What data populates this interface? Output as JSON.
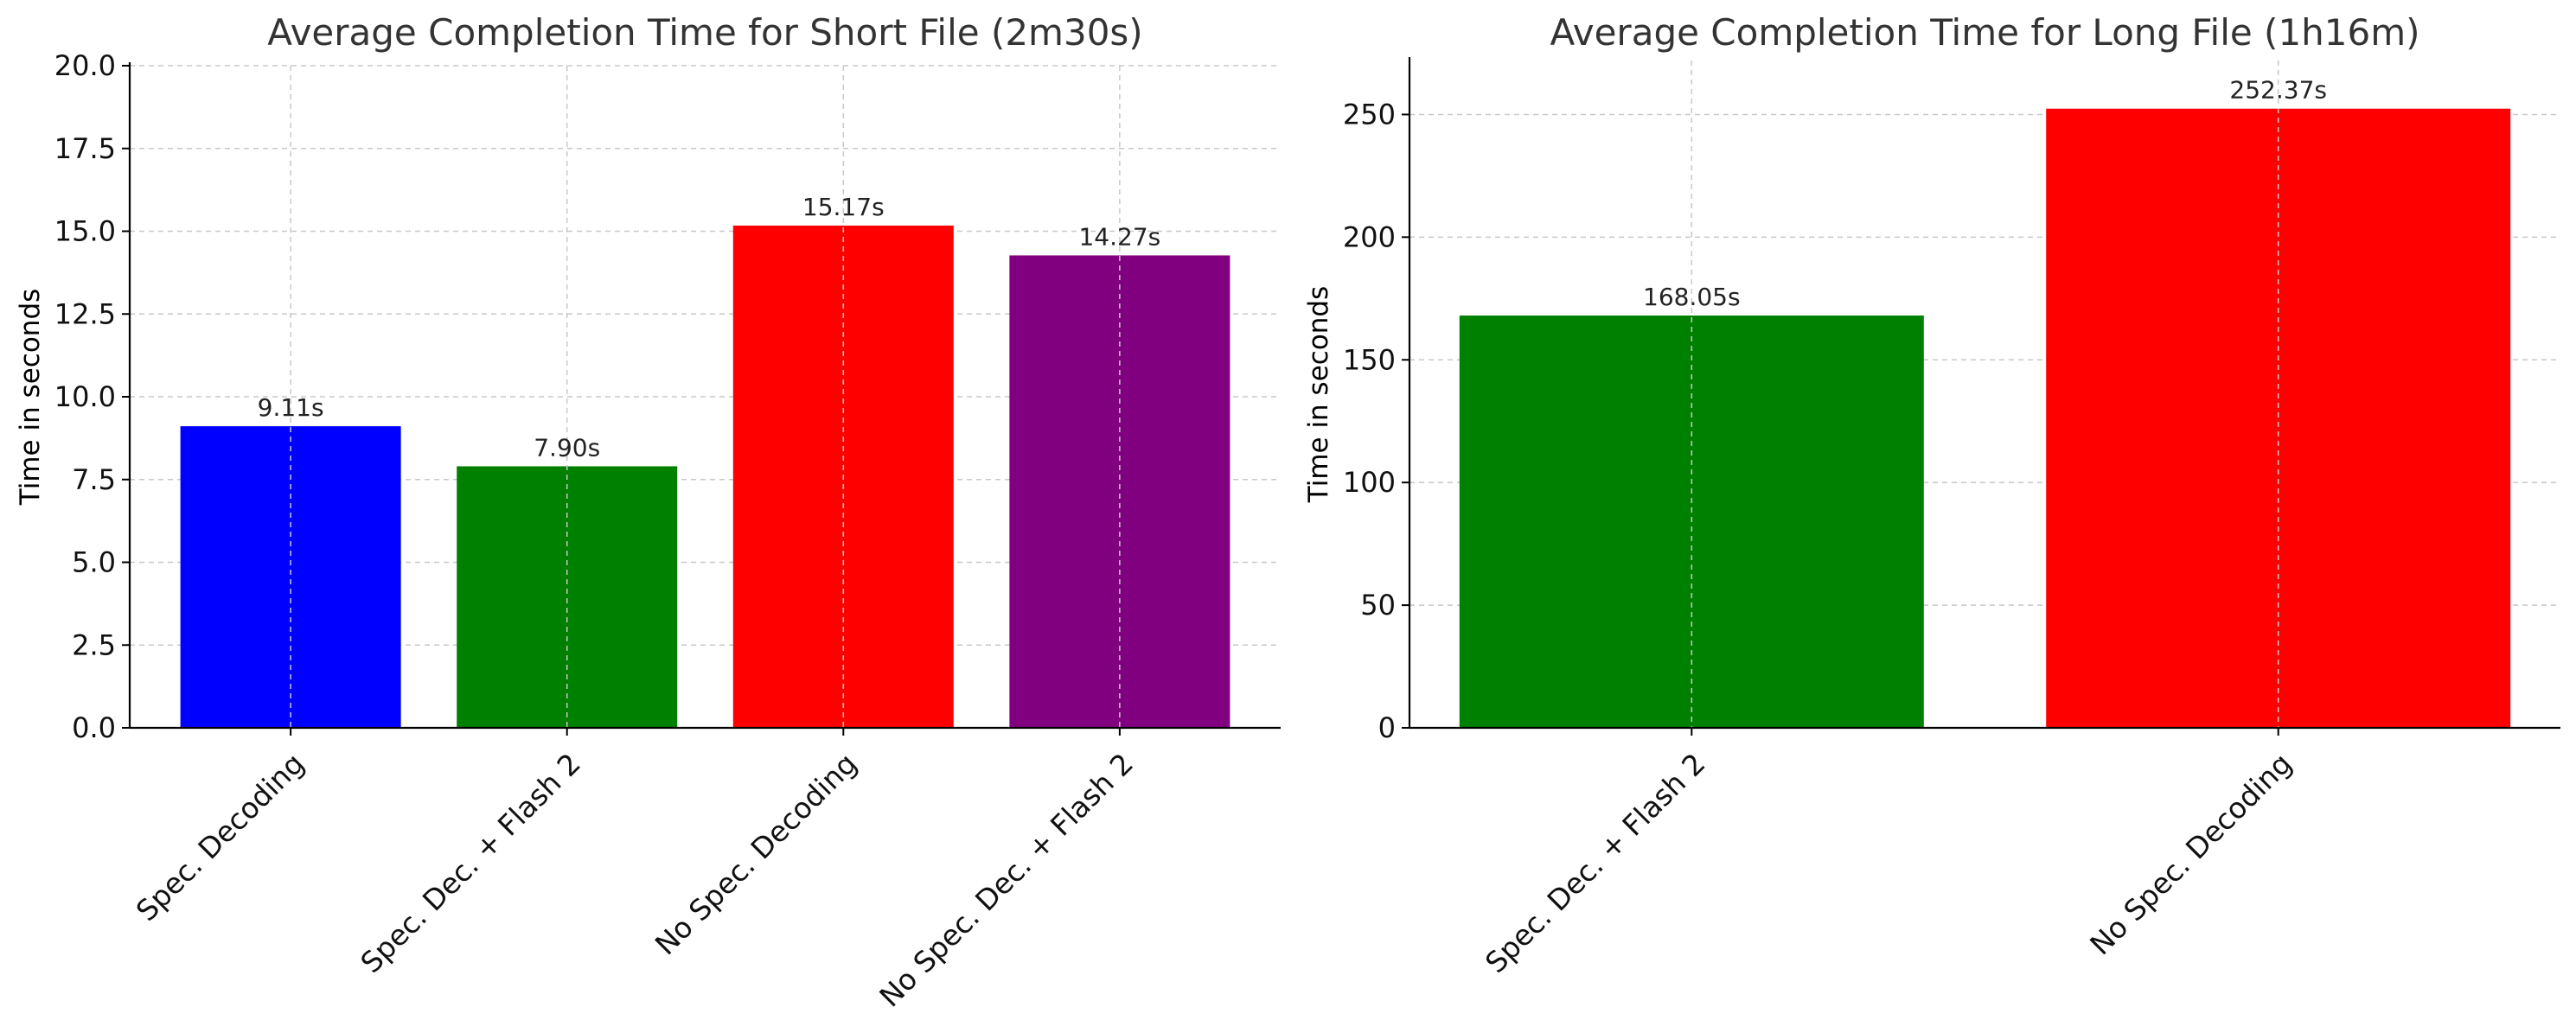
{
  "chart_data": [
    {
      "type": "bar",
      "title": "Average Completion Time for Short File (2m30s)",
      "xlabel": "",
      "ylabel": "Time in seconds",
      "ylim": [
        0,
        20
      ],
      "yticks": [
        0,
        2.5,
        5,
        7.5,
        10,
        12.5,
        15,
        17.5,
        20
      ],
      "ytick_labels": [
        "0.0",
        "2.5",
        "5.0",
        "7.5",
        "10.0",
        "12.5",
        "15.0",
        "17.5",
        "20.0"
      ],
      "grid": true,
      "categories": [
        "Spec. Decoding",
        "Spec. Dec. + Flash 2",
        "No Spec. Decoding",
        "No Spec. Dec. + Flash 2"
      ],
      "values": [
        9.11,
        7.9,
        15.17,
        14.27
      ],
      "value_labels": [
        "9.11s",
        "7.90s",
        "15.17s",
        "14.27s"
      ],
      "colors": [
        "#0000ff",
        "#008000",
        "#ff0000",
        "#800080"
      ]
    },
    {
      "type": "bar",
      "title": "Average Completion Time for Long File (1h16m)",
      "xlabel": "",
      "ylabel": "Time in seconds",
      "ylim": [
        0,
        272
      ],
      "yticks": [
        0,
        50,
        100,
        150,
        200,
        250
      ],
      "ytick_labels": [
        "0",
        "50",
        "100",
        "150",
        "200",
        "250"
      ],
      "grid": true,
      "categories": [
        "Spec. Dec. + Flash 2",
        "No Spec. Decoding"
      ],
      "values": [
        168.05,
        252.37
      ],
      "value_labels": [
        "168.05s",
        "252.37s"
      ],
      "colors": [
        "#008000",
        "#ff0000"
      ]
    }
  ]
}
